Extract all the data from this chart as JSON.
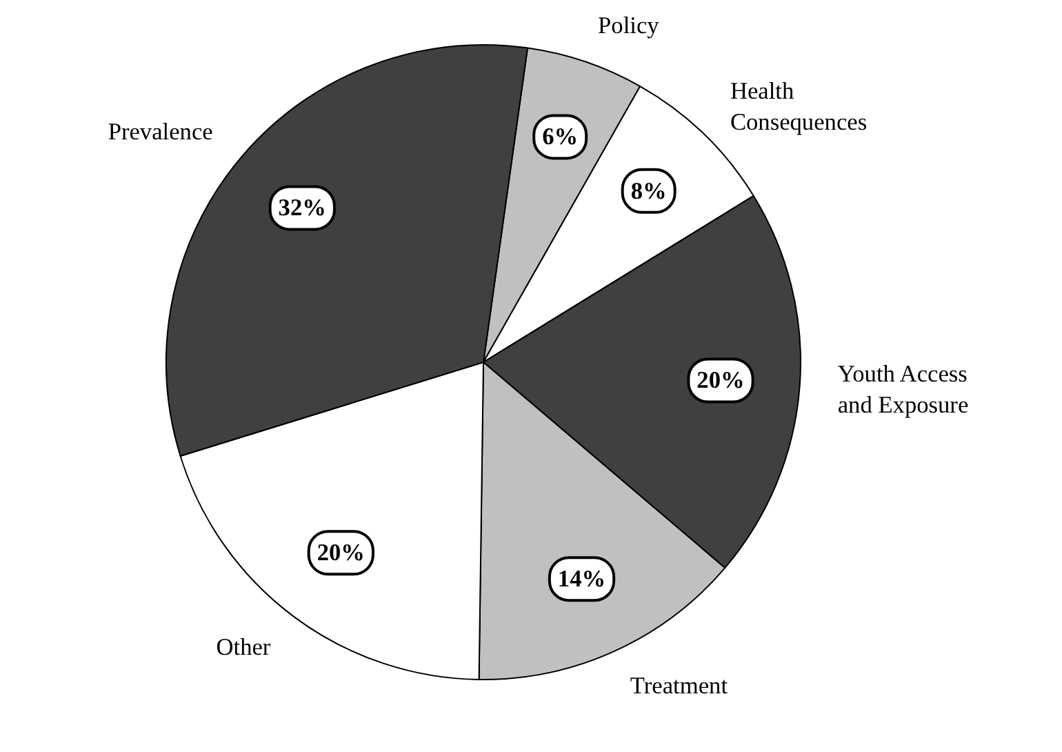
{
  "chart_data": {
    "type": "pie",
    "categories": [
      "Policy",
      "Health Consequences",
      "Youth Access and Exposure",
      "Treatment",
      "Other",
      "Prevalence"
    ],
    "values": [
      6,
      8,
      20,
      14,
      20,
      32
    ],
    "colors": [
      "#c0c0c0",
      "#ffffff",
      "#404040",
      "#c0c0c0",
      "#ffffff",
      "#404040"
    ],
    "value_labels": [
      "6%",
      "8%",
      "20%",
      "14%",
      "20%",
      "32%"
    ]
  }
}
